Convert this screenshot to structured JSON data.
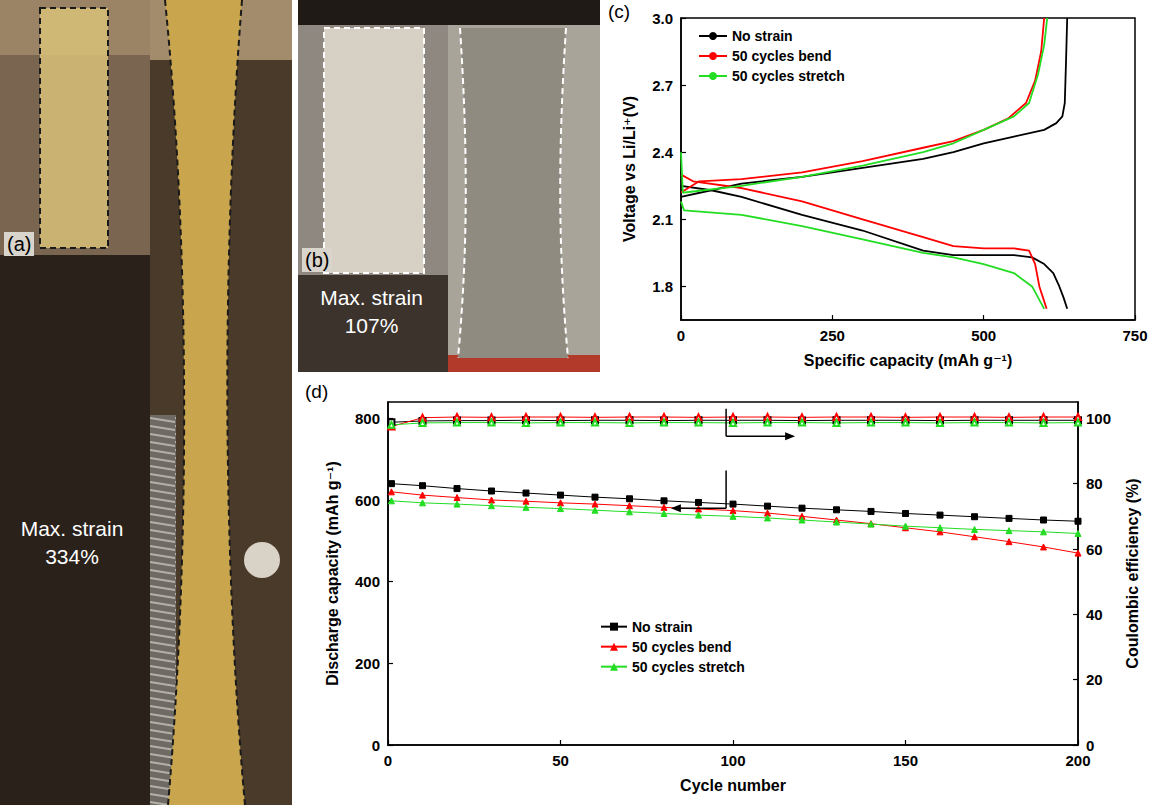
{
  "photos": [
    {
      "label": "(a)",
      "text": "Max. strain 334%"
    },
    {
      "label": "(b)",
      "text": "Max. strain 107%"
    }
  ],
  "chart_data": [
    {
      "label": "(c)",
      "type": "line",
      "x_label": "Specific capacity (mAh g⁻¹)",
      "y_label": "Voltage vs Li/Li⁺(V)",
      "xlim": [
        0,
        750
      ],
      "xticks": [
        0,
        250,
        500,
        750
      ],
      "ylim": [
        1.65,
        3.0
      ],
      "yticks": [
        1.8,
        2.1,
        2.4,
        2.7,
        {
          "value": 3.0,
          "label": "3.0"
        }
      ],
      "grid": false,
      "legend": "upper left",
      "series": [
        {
          "name": "No strain",
          "color": "#000000",
          "marker": "none",
          "x": [
            0,
            50,
            100,
            200,
            300,
            400,
            450,
            500,
            550,
            580,
            600,
            615,
            625,
            632,
            638,
            null,
            0,
            50,
            100,
            200,
            300,
            400,
            450,
            500,
            550,
            600,
            620,
            630,
            634,
            636,
            638
          ],
          "values": [
            2.25,
            2.23,
            2.2,
            2.12,
            2.05,
            1.96,
            1.94,
            1.94,
            1.94,
            1.93,
            1.9,
            1.86,
            1.8,
            1.75,
            1.7,
            null,
            2.2,
            2.23,
            2.26,
            2.29,
            2.33,
            2.37,
            2.4,
            2.44,
            2.47,
            2.5,
            2.53,
            2.56,
            2.62,
            2.8,
            3.0
          ]
        },
        {
          "name": "50 cycles bend",
          "color": "#ff0000",
          "marker": "none",
          "x": [
            0,
            20,
            100,
            200,
            300,
            400,
            450,
            500,
            550,
            575,
            585,
            592,
            598,
            604,
            null,
            0,
            30,
            100,
            200,
            300,
            400,
            450,
            500,
            540,
            570,
            585,
            595,
            600
          ],
          "values": [
            2.3,
            2.27,
            2.24,
            2.18,
            2.1,
            2.02,
            1.98,
            1.97,
            1.97,
            1.96,
            1.9,
            1.8,
            1.75,
            1.7,
            null,
            2.22,
            2.27,
            2.28,
            2.31,
            2.36,
            2.42,
            2.45,
            2.5,
            2.55,
            2.62,
            2.72,
            2.85,
            3.0
          ]
        },
        {
          "name": "50 cycles stretch",
          "color": "#22dd22",
          "marker": "none",
          "x": [
            0,
            5,
            100,
            200,
            300,
            400,
            450,
            500,
            550,
            580,
            600,
            null,
            0,
            3,
            6,
            100,
            200,
            300,
            400,
            450,
            500,
            550,
            575,
            590,
            600,
            605
          ],
          "values": [
            2.18,
            2.14,
            2.12,
            2.07,
            2.01,
            1.95,
            1.93,
            1.9,
            1.86,
            1.8,
            1.7,
            null,
            2.4,
            2.22,
            2.22,
            2.25,
            2.29,
            2.34,
            2.4,
            2.44,
            2.5,
            2.56,
            2.62,
            2.75,
            2.88,
            3.0
          ]
        }
      ]
    },
    {
      "label": "(d)",
      "type": "line",
      "x_label": "Cycle number",
      "y_label": "Discharge capacity (mAh g⁻¹)",
      "y2_label": "Coulombic efficiency (%)",
      "xlim": [
        0,
        200
      ],
      "xticks": [
        0,
        50,
        100,
        150,
        200
      ],
      "ylim": [
        0,
        840
      ],
      "yticks": [
        0,
        200,
        400,
        600,
        800
      ],
      "y2lim": [
        0,
        105
      ],
      "y2ticks": [
        0,
        20,
        40,
        60,
        80,
        100
      ],
      "grid": false,
      "legend": "lower center",
      "x": [
        1,
        10,
        20,
        30,
        40,
        50,
        60,
        70,
        80,
        90,
        100,
        110,
        120,
        130,
        140,
        150,
        160,
        170,
        180,
        190,
        200
      ],
      "series": [
        {
          "name": "No strain",
          "color": "#000000",
          "marker": "square",
          "values": [
            640,
            635,
            628,
            622,
            617,
            612,
            607,
            603,
            598,
            594,
            590,
            585,
            580,
            576,
            572,
            567,
            563,
            559,
            555,
            551,
            548
          ]
        },
        {
          "name": "50 cycles bend",
          "color": "#ff0000",
          "marker": "triangle",
          "values": [
            620,
            612,
            606,
            600,
            597,
            593,
            590,
            586,
            582,
            578,
            574,
            568,
            560,
            551,
            542,
            532,
            522,
            510,
            498,
            485,
            470
          ]
        },
        {
          "name": "50 cycles stretch",
          "color": "#22dd22",
          "marker": "triangle",
          "values": [
            598,
            593,
            590,
            586,
            582,
            579,
            575,
            571,
            567,
            563,
            560,
            556,
            551,
            546,
            541,
            536,
            532,
            528,
            525,
            522,
            518
          ]
        },
        {
          "name": "No strain",
          "color": "#000000",
          "marker": "square_open",
          "axis": "y2",
          "values": [
            98.8,
            99.2,
            99.3,
            99.3,
            99.4,
            99.3,
            99.4,
            99.4,
            99.3,
            99.4,
            99.4,
            99.4,
            99.3,
            99.4,
            99.4,
            99.4,
            99.3,
            99.4,
            99.4,
            99.4,
            99.4
          ]
        },
        {
          "name": "50 cycles bend",
          "color": "#ff0000",
          "marker": "triangle_open",
          "axis": "y2",
          "values": [
            97.5,
            100.2,
            100.4,
            100.3,
            100.4,
            100.4,
            100.3,
            100.4,
            100.4,
            100.3,
            100.4,
            100.4,
            100.3,
            100.4,
            100.4,
            100.3,
            100.4,
            100.4,
            100.3,
            100.4,
            100.4
          ]
        },
        {
          "name": "50 cycles stretch",
          "color": "#22dd22",
          "marker": "triangle_open",
          "axis": "y2",
          "values": [
            98.0,
            98.6,
            98.7,
            98.7,
            98.6,
            98.7,
            98.7,
            98.6,
            98.7,
            98.7,
            98.6,
            98.7,
            98.7,
            98.6,
            98.7,
            98.7,
            98.6,
            98.7,
            98.7,
            98.6,
            98.7
          ]
        }
      ]
    }
  ]
}
